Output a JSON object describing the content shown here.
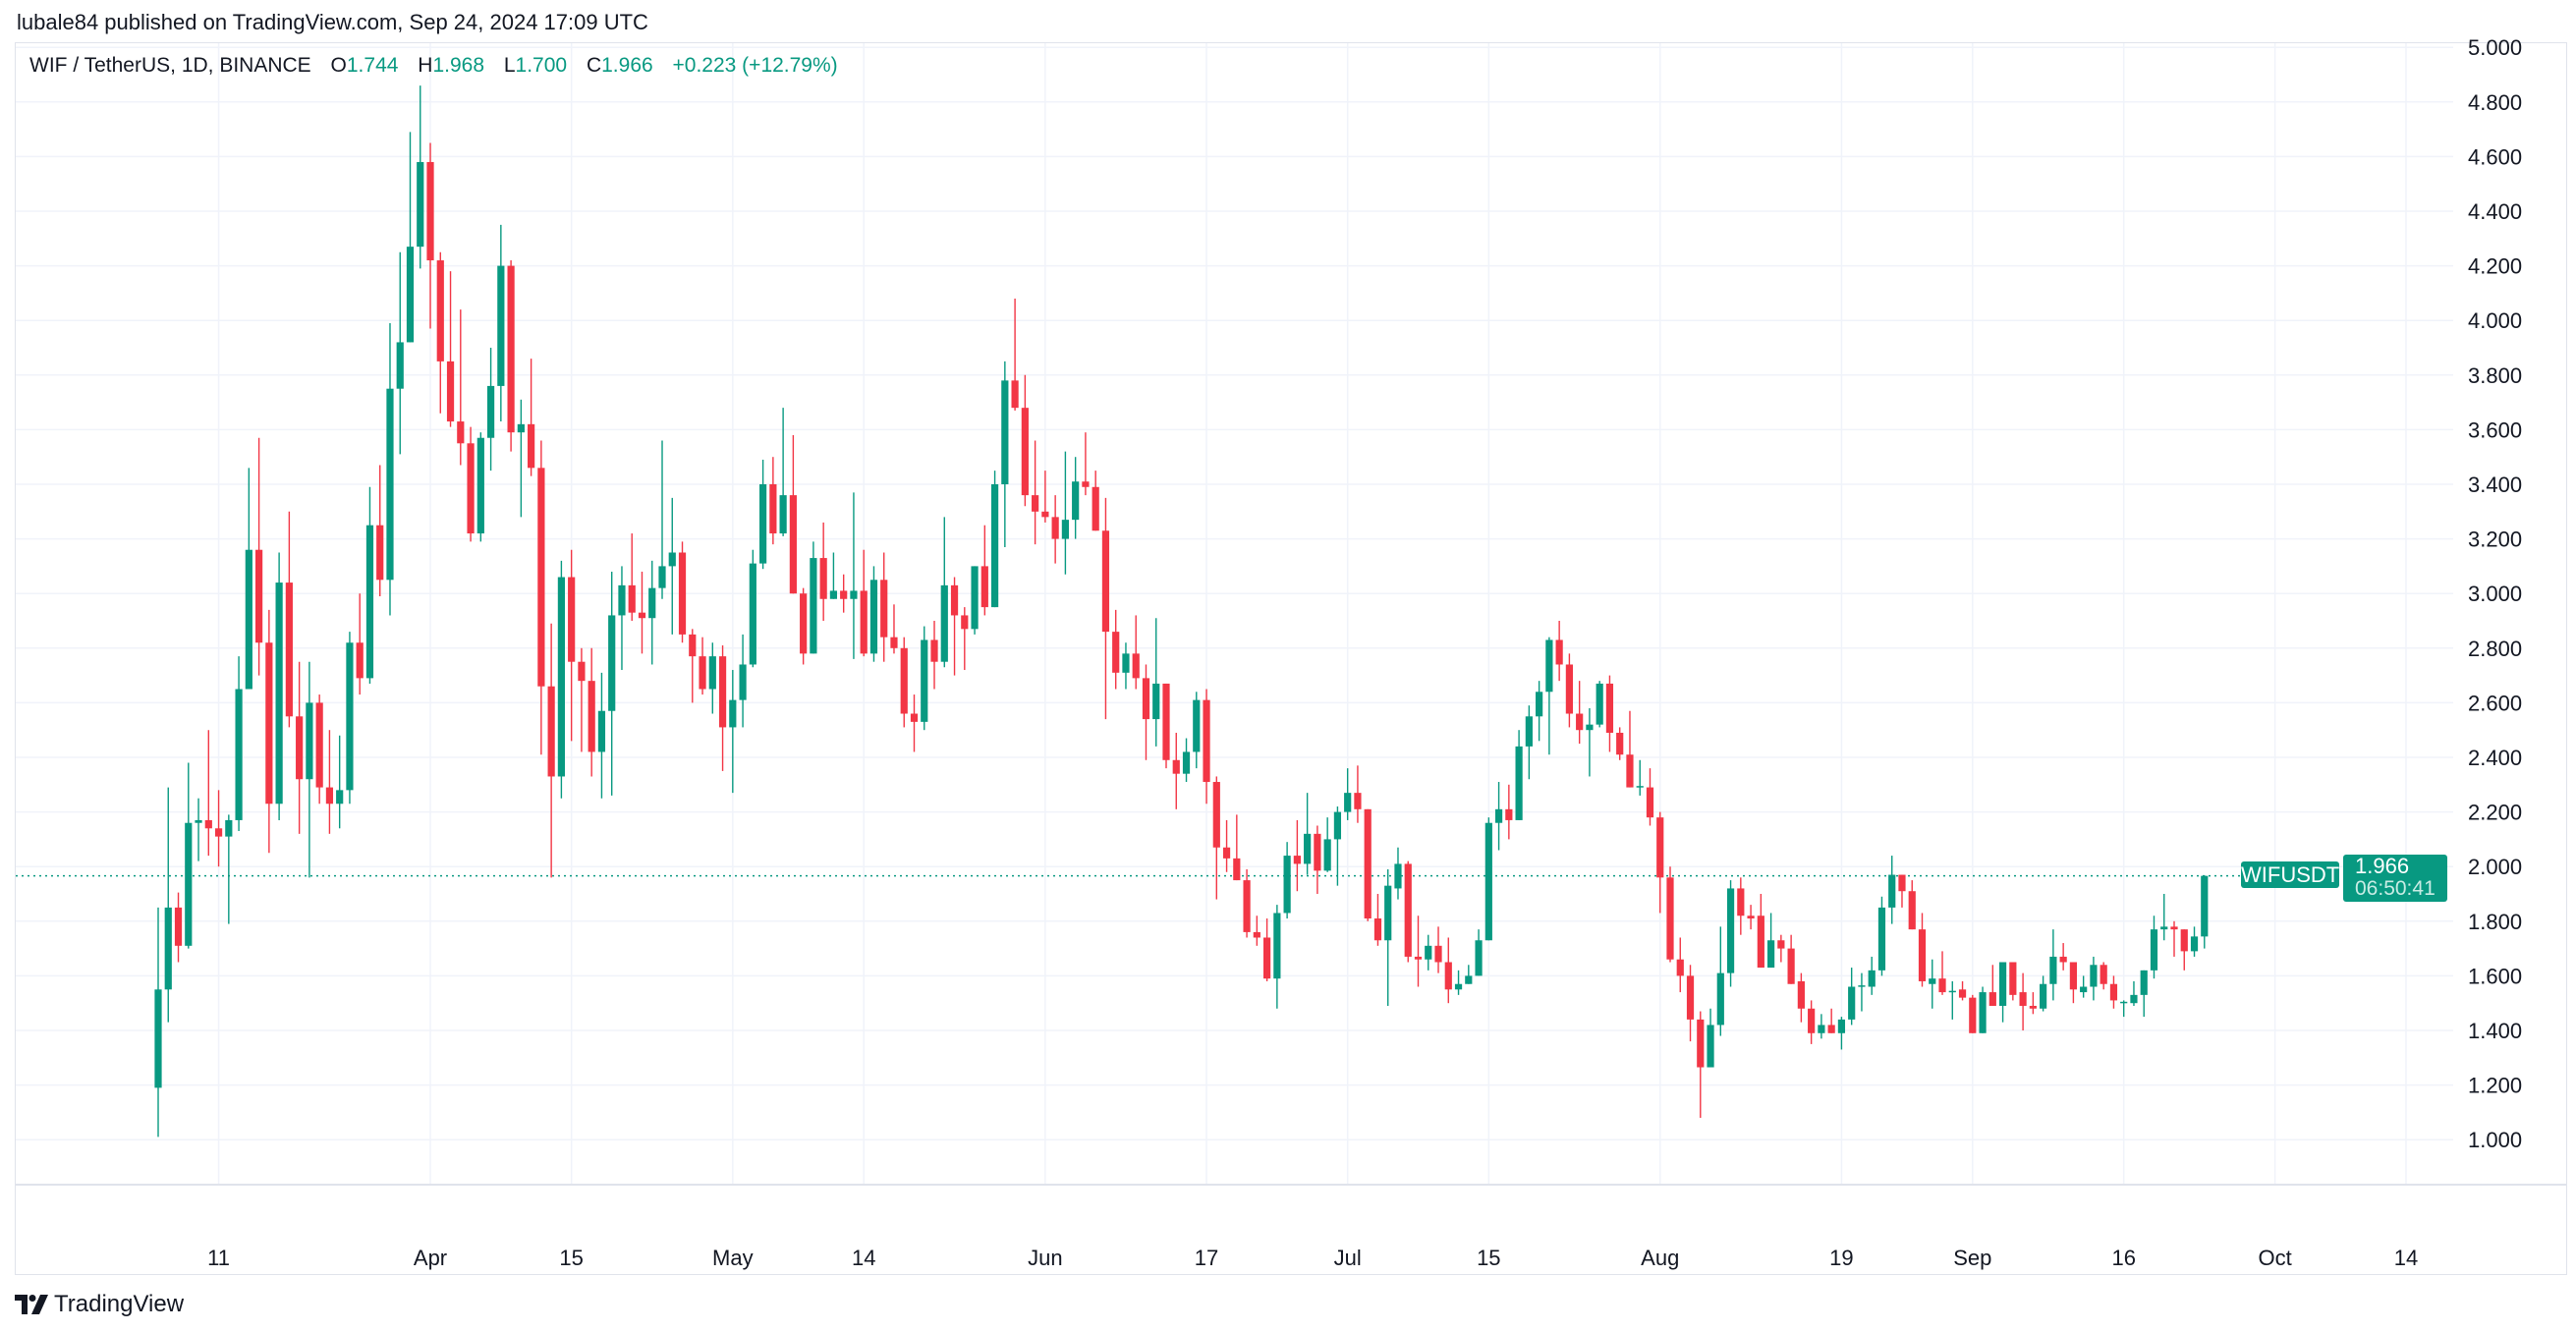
{
  "header": {
    "published_text": "lubale84 published on TradingView.com, Sep 24, 2024 17:09 UTC"
  },
  "legend": {
    "symbol_title": "WIF / TetherUS, 1D, BINANCE",
    "open_label": "O",
    "open": "1.744",
    "high_label": "H",
    "high": "1.968",
    "low_label": "L",
    "low": "1.700",
    "close_label": "C",
    "close": "1.966",
    "change": "+0.223 (+12.79%)"
  },
  "price_tag": {
    "symbol": "WIFUSDT",
    "price": "1.966",
    "countdown": "06:50:41"
  },
  "footer": {
    "brand": "TradingView"
  },
  "colors": {
    "up": "#089981",
    "down": "#F23645",
    "grid": "#f0f3fa"
  },
  "chart_data": {
    "type": "candlestick",
    "title": "WIF / TetherUS, 1D, BINANCE",
    "start_date": "2024-03-05",
    "interval": "1D",
    "ylim": [
      1.0,
      5.0
    ],
    "last_price": 1.966,
    "y_ticks": [
      "1.000",
      "1.200",
      "1.400",
      "1.600",
      "1.800",
      "2.000",
      "2.200",
      "2.400",
      "2.600",
      "2.800",
      "3.000",
      "3.200",
      "3.400",
      "3.600",
      "3.800",
      "4.000",
      "4.200",
      "4.400",
      "4.600",
      "4.800",
      "5.000"
    ],
    "x_ticks": [
      {
        "label": "11",
        "date": "2024-03-11"
      },
      {
        "label": "Apr",
        "date": "2024-04-01"
      },
      {
        "label": "15",
        "date": "2024-04-15"
      },
      {
        "label": "May",
        "date": "2024-05-01"
      },
      {
        "label": "14",
        "date": "2024-05-14"
      },
      {
        "label": "Jun",
        "date": "2024-06-01"
      },
      {
        "label": "17",
        "date": "2024-06-17"
      },
      {
        "label": "Jul",
        "date": "2024-07-01"
      },
      {
        "label": "15",
        "date": "2024-07-15"
      },
      {
        "label": "Aug",
        "date": "2024-08-01"
      },
      {
        "label": "19",
        "date": "2024-08-19"
      },
      {
        "label": "Sep",
        "date": "2024-09-01"
      },
      {
        "label": "16",
        "date": "2024-09-16"
      },
      {
        "label": "Oct",
        "date": "2024-10-01"
      },
      {
        "label": "14",
        "date": "2024-10-14"
      }
    ],
    "ohlc_fields": [
      "open",
      "high",
      "low",
      "close"
    ],
    "ohlc": [
      [
        1.19,
        1.85,
        1.01,
        1.55
      ],
      [
        1.55,
        2.29,
        1.43,
        1.85
      ],
      [
        1.85,
        1.905,
        1.65,
        1.71
      ],
      [
        1.71,
        2.38,
        1.7,
        2.16
      ],
      [
        2.16,
        2.25,
        2.02,
        2.17
      ],
      [
        2.17,
        2.5,
        2.04,
        2.14
      ],
      [
        2.14,
        2.28,
        2.0,
        2.11
      ],
      [
        2.11,
        2.19,
        1.79,
        2.17
      ],
      [
        2.17,
        2.77,
        2.13,
        2.65
      ],
      [
        2.65,
        3.46,
        2.65,
        3.16
      ],
      [
        3.16,
        3.57,
        2.7,
        2.82
      ],
      [
        2.82,
        2.94,
        2.05,
        2.23
      ],
      [
        2.23,
        3.15,
        2.17,
        3.04
      ],
      [
        3.04,
        3.3,
        2.51,
        2.55
      ],
      [
        2.55,
        2.75,
        2.12,
        2.32
      ],
      [
        2.32,
        2.75,
        1.96,
        2.6
      ],
      [
        2.6,
        2.63,
        2.23,
        2.29
      ],
      [
        2.29,
        2.5,
        2.12,
        2.23
      ],
      [
        2.23,
        2.48,
        2.14,
        2.28
      ],
      [
        2.28,
        2.86,
        2.23,
        2.82
      ],
      [
        2.82,
        3.0,
        2.63,
        2.69
      ],
      [
        2.69,
        3.39,
        2.67,
        3.25
      ],
      [
        3.25,
        3.47,
        2.99,
        3.05
      ],
      [
        3.05,
        3.99,
        2.92,
        3.75
      ],
      [
        3.75,
        4.25,
        3.51,
        3.92
      ],
      [
        3.92,
        4.69,
        3.92,
        4.27
      ],
      [
        4.27,
        4.86,
        4.19,
        4.58
      ],
      [
        4.58,
        4.65,
        3.97,
        4.22
      ],
      [
        4.22,
        4.25,
        3.66,
        3.85
      ],
      [
        3.85,
        4.18,
        3.61,
        3.63
      ],
      [
        3.63,
        4.04,
        3.47,
        3.55
      ],
      [
        3.55,
        3.61,
        3.19,
        3.22
      ],
      [
        3.22,
        3.59,
        3.19,
        3.57
      ],
      [
        3.57,
        3.9,
        3.45,
        3.76
      ],
      [
        3.76,
        4.35,
        3.63,
        4.2
      ],
      [
        4.2,
        4.22,
        3.52,
        3.59
      ],
      [
        3.59,
        3.71,
        3.28,
        3.62
      ],
      [
        3.62,
        3.86,
        3.43,
        3.46
      ],
      [
        3.46,
        3.56,
        2.41,
        2.66
      ],
      [
        2.66,
        2.89,
        1.96,
        2.33
      ],
      [
        2.33,
        3.12,
        2.25,
        3.06
      ],
      [
        3.06,
        3.16,
        2.46,
        2.75
      ],
      [
        2.75,
        2.8,
        2.42,
        2.68
      ],
      [
        2.68,
        2.8,
        2.33,
        2.42
      ],
      [
        2.42,
        2.71,
        2.25,
        2.57
      ],
      [
        2.57,
        3.08,
        2.26,
        2.92
      ],
      [
        2.92,
        3.1,
        2.72,
        3.03
      ],
      [
        3.03,
        3.22,
        2.9,
        2.93
      ],
      [
        2.93,
        3.08,
        2.78,
        2.91
      ],
      [
        2.91,
        3.12,
        2.74,
        3.02
      ],
      [
        3.02,
        3.56,
        2.98,
        3.1
      ],
      [
        3.1,
        3.35,
        2.85,
        3.15
      ],
      [
        3.15,
        3.19,
        2.82,
        2.85
      ],
      [
        2.85,
        2.87,
        2.6,
        2.77
      ],
      [
        2.77,
        2.84,
        2.63,
        2.65
      ],
      [
        2.65,
        2.82,
        2.56,
        2.77
      ],
      [
        2.77,
        2.81,
        2.35,
        2.51
      ],
      [
        2.51,
        2.72,
        2.27,
        2.61
      ],
      [
        2.61,
        2.85,
        2.51,
        2.74
      ],
      [
        2.74,
        3.16,
        2.73,
        3.11
      ],
      [
        3.11,
        3.49,
        3.09,
        3.4
      ],
      [
        3.4,
        3.5,
        3.18,
        3.22
      ],
      [
        3.22,
        3.68,
        3.21,
        3.36
      ],
      [
        3.36,
        3.58,
        3.0,
        3.0
      ],
      [
        3.0,
        3.02,
        2.74,
        2.78
      ],
      [
        2.78,
        3.19,
        2.78,
        3.13
      ],
      [
        3.13,
        3.26,
        2.9,
        2.98
      ],
      [
        2.98,
        3.15,
        2.98,
        3.01
      ],
      [
        3.01,
        3.07,
        2.93,
        2.98
      ],
      [
        2.98,
        3.37,
        2.76,
        3.01
      ],
      [
        3.01,
        3.16,
        2.77,
        2.78
      ],
      [
        2.78,
        3.1,
        2.75,
        3.05
      ],
      [
        3.05,
        3.15,
        2.75,
        2.84
      ],
      [
        2.84,
        2.96,
        2.78,
        2.8
      ],
      [
        2.8,
        2.84,
        2.51,
        2.56
      ],
      [
        2.56,
        2.63,
        2.42,
        2.53
      ],
      [
        2.53,
        2.88,
        2.5,
        2.83
      ],
      [
        2.83,
        2.9,
        2.65,
        2.75
      ],
      [
        2.75,
        3.28,
        2.73,
        3.03
      ],
      [
        3.03,
        3.06,
        2.7,
        2.92
      ],
      [
        2.92,
        2.95,
        2.72,
        2.87
      ],
      [
        2.87,
        3.1,
        2.85,
        3.1
      ],
      [
        3.1,
        3.25,
        2.92,
        2.95
      ],
      [
        2.95,
        3.45,
        2.95,
        3.4
      ],
      [
        3.4,
        3.85,
        3.17,
        3.78
      ],
      [
        3.78,
        4.08,
        3.67,
        3.68
      ],
      [
        3.68,
        3.8,
        3.32,
        3.36
      ],
      [
        3.36,
        3.56,
        3.18,
        3.3
      ],
      [
        3.3,
        3.45,
        3.26,
        3.28
      ],
      [
        3.28,
        3.36,
        3.11,
        3.2
      ],
      [
        3.2,
        3.52,
        3.07,
        3.27
      ],
      [
        3.27,
        3.5,
        3.2,
        3.41
      ],
      [
        3.41,
        3.59,
        3.36,
        3.39
      ],
      [
        3.39,
        3.45,
        3.23,
        3.23
      ],
      [
        3.23,
        3.35,
        2.54,
        2.86
      ],
      [
        2.86,
        2.94,
        2.65,
        2.71
      ],
      [
        2.71,
        2.82,
        2.65,
        2.78
      ],
      [
        2.78,
        2.92,
        2.65,
        2.69
      ],
      [
        2.69,
        2.74,
        2.39,
        2.54
      ],
      [
        2.54,
        2.91,
        2.44,
        2.67
      ],
      [
        2.67,
        2.67,
        2.36,
        2.39
      ],
      [
        2.39,
        2.49,
        2.21,
        2.34
      ],
      [
        2.34,
        2.47,
        2.31,
        2.42
      ],
      [
        2.42,
        2.64,
        2.36,
        2.61
      ],
      [
        2.61,
        2.65,
        2.23,
        2.31
      ],
      [
        2.31,
        2.33,
        1.88,
        2.07
      ],
      [
        2.07,
        2.17,
        1.98,
        2.03
      ],
      [
        2.03,
        2.19,
        1.95,
        1.95
      ],
      [
        1.95,
        1.99,
        1.74,
        1.76
      ],
      [
        1.76,
        1.82,
        1.71,
        1.74
      ],
      [
        1.74,
        1.81,
        1.58,
        1.59
      ],
      [
        1.59,
        1.86,
        1.48,
        1.83
      ],
      [
        1.83,
        2.09,
        1.81,
        2.04
      ],
      [
        2.04,
        2.17,
        1.91,
        2.01
      ],
      [
        2.01,
        2.27,
        1.97,
        2.12
      ],
      [
        2.12,
        2.15,
        1.9,
        1.985
      ],
      [
        1.985,
        2.18,
        1.98,
        2.1
      ],
      [
        2.1,
        2.22,
        1.93,
        2.2
      ],
      [
        2.2,
        2.36,
        2.17,
        2.27
      ],
      [
        2.27,
        2.37,
        2.16,
        2.21
      ],
      [
        2.21,
        2.21,
        1.8,
        1.81
      ],
      [
        1.81,
        1.9,
        1.71,
        1.73
      ],
      [
        1.73,
        1.99,
        1.49,
        1.93
      ],
      [
        1.92,
        2.07,
        1.88,
        2.01
      ],
      [
        2.01,
        2.02,
        1.65,
        1.67
      ],
      [
        1.67,
        1.82,
        1.56,
        1.66
      ],
      [
        1.66,
        1.75,
        1.62,
        1.71
      ],
      [
        1.71,
        1.78,
        1.61,
        1.65
      ],
      [
        1.65,
        1.74,
        1.5,
        1.55
      ],
      [
        1.55,
        1.62,
        1.53,
        1.57
      ],
      [
        1.57,
        1.64,
        1.57,
        1.6
      ],
      [
        1.6,
        1.77,
        1.6,
        1.73
      ],
      [
        1.73,
        2.18,
        1.73,
        2.16
      ],
      [
        2.16,
        2.31,
        2.06,
        2.21
      ],
      [
        2.21,
        2.3,
        2.1,
        2.17
      ],
      [
        2.17,
        2.5,
        2.17,
        2.44
      ],
      [
        2.44,
        2.59,
        2.32,
        2.55
      ],
      [
        2.55,
        2.68,
        2.46,
        2.64
      ],
      [
        2.64,
        2.84,
        2.41,
        2.83
      ],
      [
        2.83,
        2.9,
        2.68,
        2.74
      ],
      [
        2.74,
        2.78,
        2.51,
        2.56
      ],
      [
        2.56,
        2.68,
        2.45,
        2.5
      ],
      [
        2.5,
        2.58,
        2.33,
        2.52
      ],
      [
        2.52,
        2.68,
        2.51,
        2.67
      ],
      [
        2.67,
        2.7,
        2.42,
        2.49
      ],
      [
        2.49,
        2.51,
        2.39,
        2.41
      ],
      [
        2.41,
        2.57,
        2.29,
        2.29
      ],
      [
        2.29,
        2.39,
        2.26,
        2.295
      ],
      [
        2.29,
        2.36,
        2.15,
        2.18
      ],
      [
        2.18,
        2.2,
        1.83,
        1.96
      ],
      [
        1.96,
        2.0,
        1.65,
        1.66
      ],
      [
        1.66,
        1.74,
        1.54,
        1.6
      ],
      [
        1.6,
        1.64,
        1.36,
        1.44
      ],
      [
        1.44,
        1.47,
        1.08,
        1.265
      ],
      [
        1.265,
        1.48,
        1.265,
        1.42
      ],
      [
        1.42,
        1.78,
        1.38,
        1.61
      ],
      [
        1.61,
        1.95,
        1.56,
        1.92
      ],
      [
        1.92,
        1.96,
        1.75,
        1.82
      ],
      [
        1.82,
        1.86,
        1.77,
        1.81
      ],
      [
        1.82,
        1.9,
        1.63,
        1.63
      ],
      [
        1.63,
        1.83,
        1.63,
        1.73
      ],
      [
        1.73,
        1.75,
        1.65,
        1.7
      ],
      [
        1.7,
        1.75,
        1.57,
        1.57
      ],
      [
        1.58,
        1.61,
        1.43,
        1.48
      ],
      [
        1.48,
        1.51,
        1.35,
        1.39
      ],
      [
        1.39,
        1.46,
        1.37,
        1.42
      ],
      [
        1.42,
        1.48,
        1.39,
        1.39
      ],
      [
        1.39,
        1.45,
        1.33,
        1.44
      ],
      [
        1.44,
        1.63,
        1.42,
        1.56
      ],
      [
        1.56,
        1.61,
        1.47,
        1.565
      ],
      [
        1.56,
        1.67,
        1.53,
        1.62
      ],
      [
        1.62,
        1.89,
        1.6,
        1.85
      ],
      [
        1.85,
        2.04,
        1.79,
        1.97
      ],
      [
        1.97,
        1.97,
        1.85,
        1.91
      ],
      [
        1.91,
        1.95,
        1.77,
        1.77
      ],
      [
        1.77,
        1.83,
        1.56,
        1.58
      ],
      [
        1.57,
        1.66,
        1.48,
        1.59
      ],
      [
        1.59,
        1.69,
        1.53,
        1.54
      ],
      [
        1.54,
        1.58,
        1.44,
        1.545
      ],
      [
        1.55,
        1.58,
        1.51,
        1.52
      ],
      [
        1.52,
        1.53,
        1.39,
        1.39
      ],
      [
        1.39,
        1.56,
        1.39,
        1.54
      ],
      [
        1.54,
        1.64,
        1.49,
        1.49
      ],
      [
        1.49,
        1.65,
        1.43,
        1.65
      ],
      [
        1.65,
        1.65,
        1.51,
        1.53
      ],
      [
        1.54,
        1.61,
        1.4,
        1.49
      ],
      [
        1.49,
        1.54,
        1.46,
        1.48
      ],
      [
        1.48,
        1.6,
        1.47,
        1.57
      ],
      [
        1.57,
        1.77,
        1.51,
        1.67
      ],
      [
        1.67,
        1.72,
        1.62,
        1.65
      ],
      [
        1.65,
        1.65,
        1.5,
        1.55
      ],
      [
        1.54,
        1.6,
        1.52,
        1.56
      ],
      [
        1.56,
        1.67,
        1.51,
        1.64
      ],
      [
        1.64,
        1.65,
        1.55,
        1.57
      ],
      [
        1.57,
        1.6,
        1.48,
        1.51
      ],
      [
        1.5,
        1.51,
        1.45,
        1.505
      ],
      [
        1.5,
        1.58,
        1.49,
        1.53
      ],
      [
        1.53,
        1.62,
        1.45,
        1.62
      ],
      [
        1.62,
        1.82,
        1.59,
        1.77
      ],
      [
        1.77,
        1.9,
        1.73,
        1.78
      ],
      [
        1.78,
        1.8,
        1.67,
        1.77
      ],
      [
        1.77,
        1.77,
        1.62,
        1.69
      ],
      [
        1.69,
        1.78,
        1.67,
        1.744
      ],
      [
        1.744,
        1.968,
        1.7,
        1.966
      ]
    ]
  }
}
